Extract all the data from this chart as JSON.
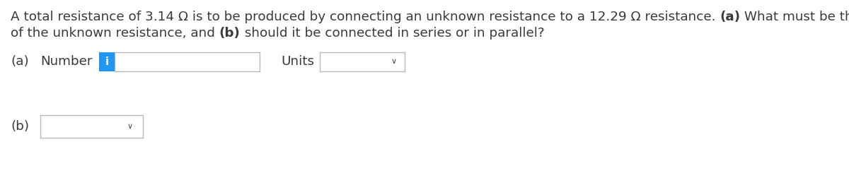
{
  "bg_color": "#ffffff",
  "text_color": "#3a3a3a",
  "bold_color": "#1a1a1a",
  "line1_parts": [
    [
      "A total resistance of 3.14 Ω is to be produced by connecting an unknown resistance to a 12.29 Ω resistance. ",
      false
    ],
    [
      "(a)",
      true
    ],
    [
      " What must be the value",
      false
    ]
  ],
  "line2_parts": [
    [
      "of the unknown resistance, and ",
      false
    ],
    [
      "(b)",
      true
    ],
    [
      " should it be connected in series or in parallel?",
      false
    ]
  ],
  "label_a": "(a)",
  "label_number": "Number",
  "label_units": "Units",
  "label_b": "(b)",
  "icon_color": "#2196F3",
  "icon_text": "i",
  "box_border_color": "#b8b8b8",
  "font_size_body": 13.2,
  "font_size_label": 13.2,
  "chevron": "∨"
}
